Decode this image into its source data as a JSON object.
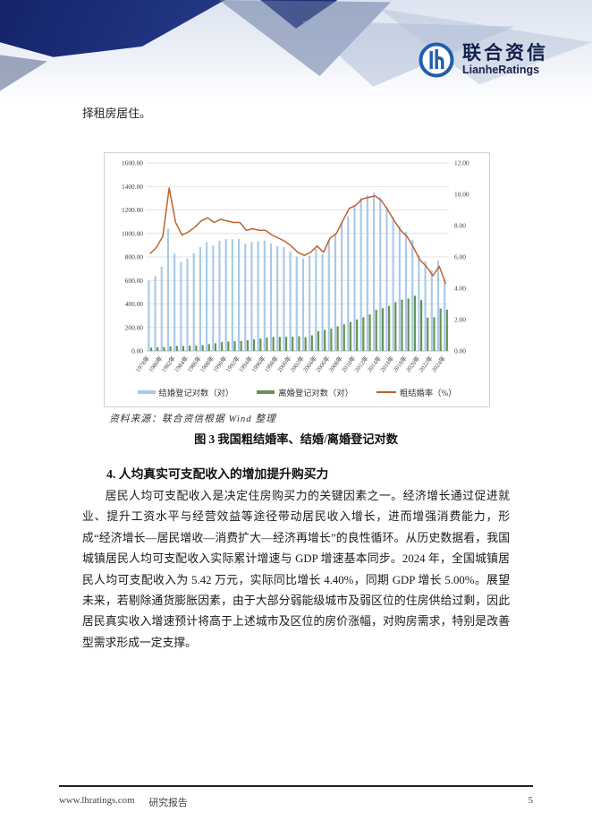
{
  "header": {
    "brand_cn": "联合资信",
    "brand_en": "LianheRatings",
    "logo_color": "#1f5fad"
  },
  "intro_text": "择租房居住。",
  "chart": {
    "source_note": "资料来源：联合资信根据 Wind 整理",
    "caption": "图 3  我国粗结婚率、结婚/离婚登记对数"
  },
  "chart_data": {
    "type": "bar+line combo",
    "x": [
      1978,
      1979,
      1980,
      1981,
      1982,
      1983,
      1984,
      1985,
      1986,
      1987,
      1988,
      1989,
      1990,
      1991,
      1992,
      1993,
      1994,
      1995,
      1996,
      1997,
      1998,
      1999,
      2000,
      2001,
      2002,
      2003,
      2004,
      2005,
      2006,
      2007,
      2008,
      2009,
      2010,
      2011,
      2012,
      2013,
      2014,
      2015,
      2016,
      2017,
      2018,
      2019,
      2020,
      2021,
      2022,
      2023,
      2024
    ],
    "x_tick_labels": [
      "1978年",
      "1980年",
      "1982年",
      "1984年",
      "1986年",
      "1988年",
      "1990年",
      "1992年",
      "1994年",
      "1996年",
      "1998年",
      "2000年",
      "2002年",
      "2004年",
      "2006年",
      "2008年",
      "2010年",
      "2012年",
      "2014年",
      "2016年",
      "2018年",
      "2020年",
      "2022年",
      "2024年"
    ],
    "series": [
      {
        "name": "结婚登记对数（对）",
        "type": "bar",
        "axis": "left",
        "color": "#a9c9e8",
        "values": [
          598,
          638,
          717,
          1040,
          827,
          758,
          787,
          831,
          884,
          926,
          898,
          937,
          951,
          951,
          954,
          913,
          929,
          934,
          939,
          913,
          892,
          885,
          848,
          805,
          786,
          811,
          867,
          823,
          945,
          991,
          1098,
          1146,
          1241,
          1302,
          1324,
          1347,
          1307,
          1225,
          1143,
          1063,
          1014,
          947,
          814,
          764,
          684,
          768,
          611
        ]
      },
      {
        "name": "离婚登记对数（对）",
        "type": "bar",
        "axis": "left",
        "color": "#66934f",
        "values": [
          28.5,
          31.9,
          34.1,
          38.6,
          42.8,
          42.0,
          45.4,
          45.8,
          50.6,
          58.1,
          65.5,
          75.3,
          80.0,
          82.9,
          85.0,
          90.9,
          98.0,
          105.6,
          113.2,
          119.8,
          119.9,
          120.1,
          121.3,
          125.0,
          117.7,
          133.1,
          166.5,
          178.5,
          191.3,
          209.8,
          226.9,
          246.8,
          267.8,
          287.4,
          310.4,
          350.0,
          363.7,
          384.1,
          415.8,
          437.4,
          446.1,
          470.1,
          433.9,
          283.9,
          287.9,
          361.3,
          351.3
        ]
      },
      {
        "name": "粗结婚率（%）",
        "type": "line",
        "axis": "right",
        "color": "#c0612c",
        "values": [
          6.2,
          6.6,
          7.3,
          10.4,
          8.2,
          7.4,
          7.6,
          7.9,
          8.3,
          8.5,
          8.2,
          8.4,
          8.3,
          8.2,
          8.2,
          7.7,
          7.8,
          7.7,
          7.7,
          7.4,
          7.2,
          7.0,
          6.7,
          6.3,
          6.1,
          6.3,
          6.7,
          6.3,
          7.2,
          7.5,
          8.3,
          9.1,
          9.3,
          9.7,
          9.8,
          9.9,
          9.6,
          9.0,
          8.3,
          7.7,
          7.3,
          6.6,
          5.8,
          5.4,
          4.8,
          5.4,
          4.3
        ]
      }
    ],
    "left_axis": {
      "min": 0,
      "max": 1600,
      "step": 200,
      "format": "0.00"
    },
    "right_axis": {
      "min": 0,
      "max": 12,
      "step": 2,
      "format": "0.00"
    },
    "grid": true,
    "legend_position": "bottom"
  },
  "section": {
    "heading": "4. 人均真实可支配收入的增加提升购买力",
    "paragraph": "居民人均可支配收入是决定住房购买力的关键因素之一。经济增长通过促进就业、提升工资水平与经营效益等途径带动居民收入增长，进而增强消费能力，形成“经济增长—居民增收—消费扩大—经济再增长”的良性循环。从历史数据看，我国城镇居民人均可支配收入实际累计增速与 GDP 增速基本同步。2024 年，全国城镇居民人均可支配收入为 5.42 万元，实际同比增长 4.40%，同期 GDP 增长 5.00%。展望未来，若剔除通货膨胀因素，由于大部分弱能级城市及弱区位的住房供给过剩，因此居民真实收入增速预计将高于上述城市及区位的房价涨幅，对购房需求，特别是改善型需求形成一定支撑。"
  },
  "footer": {
    "website": "www.lhratings.com",
    "doc_type": "研究报告",
    "page_number": "5"
  }
}
